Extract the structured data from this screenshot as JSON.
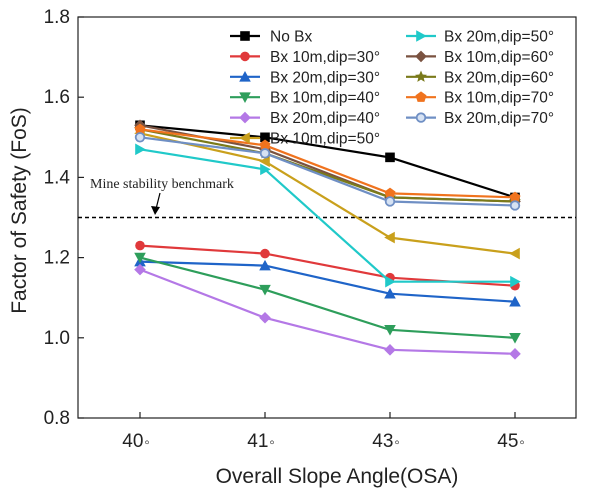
{
  "chart_data": {
    "type": "line",
    "xlabel": "Overall Slope Angle(OSA)",
    "ylabel": "Factor of Safety (FoS)",
    "categories": [
      "40°",
      "41°",
      "43°",
      "45°"
    ],
    "category_labels": [
      {
        "num": "40",
        "deg": "◦"
      },
      {
        "num": "41",
        "deg": "◦"
      },
      {
        "num": "43",
        "deg": "◦"
      },
      {
        "num": "45",
        "deg": "◦"
      }
    ],
    "ylim": [
      0.8,
      1.8
    ],
    "yticks": [
      "0.8",
      "1.0",
      "1.2",
      "1.4",
      "1.6",
      "1.8"
    ],
    "grid": false,
    "legend_placement": "top-right",
    "benchmark": {
      "value": 1.3,
      "label": "Mine stability benchmark",
      "style": "dashed",
      "color": "#000000"
    },
    "series": [
      {
        "name": "No Bx",
        "values": [
          1.53,
          1.5,
          1.45,
          1.35
        ],
        "color": "#000000",
        "marker": "square"
      },
      {
        "name": "Bx 10m,dip=30°",
        "values": [
          1.23,
          1.21,
          1.15,
          1.13
        ],
        "color": "#e0393b",
        "marker": "circle"
      },
      {
        "name": "Bx 20m,dip=30°",
        "values": [
          1.19,
          1.18,
          1.11,
          1.09
        ],
        "color": "#1f64c8",
        "marker": "triangle-up"
      },
      {
        "name": "Bx 10m,dip=40°",
        "values": [
          1.2,
          1.12,
          1.02,
          1.0
        ],
        "color": "#2e9e5b",
        "marker": "triangle-down"
      },
      {
        "name": "Bx 20m,dip=40°",
        "values": [
          1.17,
          1.05,
          0.97,
          0.96
        ],
        "color": "#b478e6",
        "marker": "diamond"
      },
      {
        "name": "Bx 10m,dip=50°",
        "values": [
          1.51,
          1.44,
          1.25,
          1.21
        ],
        "color": "#c9a01c",
        "marker": "triangle-left"
      },
      {
        "name": "Bx 20m,dip=50°",
        "values": [
          1.47,
          1.42,
          1.14,
          1.14
        ],
        "color": "#20c9c9",
        "marker": "triangle-right"
      },
      {
        "name": "Bx 10m,dip=60°",
        "values": [
          1.53,
          1.47,
          1.35,
          1.34
        ],
        "color": "#7a5240",
        "marker": "diamond"
      },
      {
        "name": "Bx 20m,dip=60°",
        "values": [
          1.52,
          1.46,
          1.35,
          1.34
        ],
        "color": "#7a7a1a",
        "marker": "star"
      },
      {
        "name": "Bx 10m,dip=70°",
        "values": [
          1.52,
          1.48,
          1.36,
          1.35
        ],
        "color": "#f0731e",
        "marker": "pentagon"
      },
      {
        "name": "Bx 20m,dip=70°",
        "values": [
          1.5,
          1.46,
          1.34,
          1.33
        ],
        "color": "#6f8fc4",
        "marker": "circle-open"
      }
    ]
  }
}
